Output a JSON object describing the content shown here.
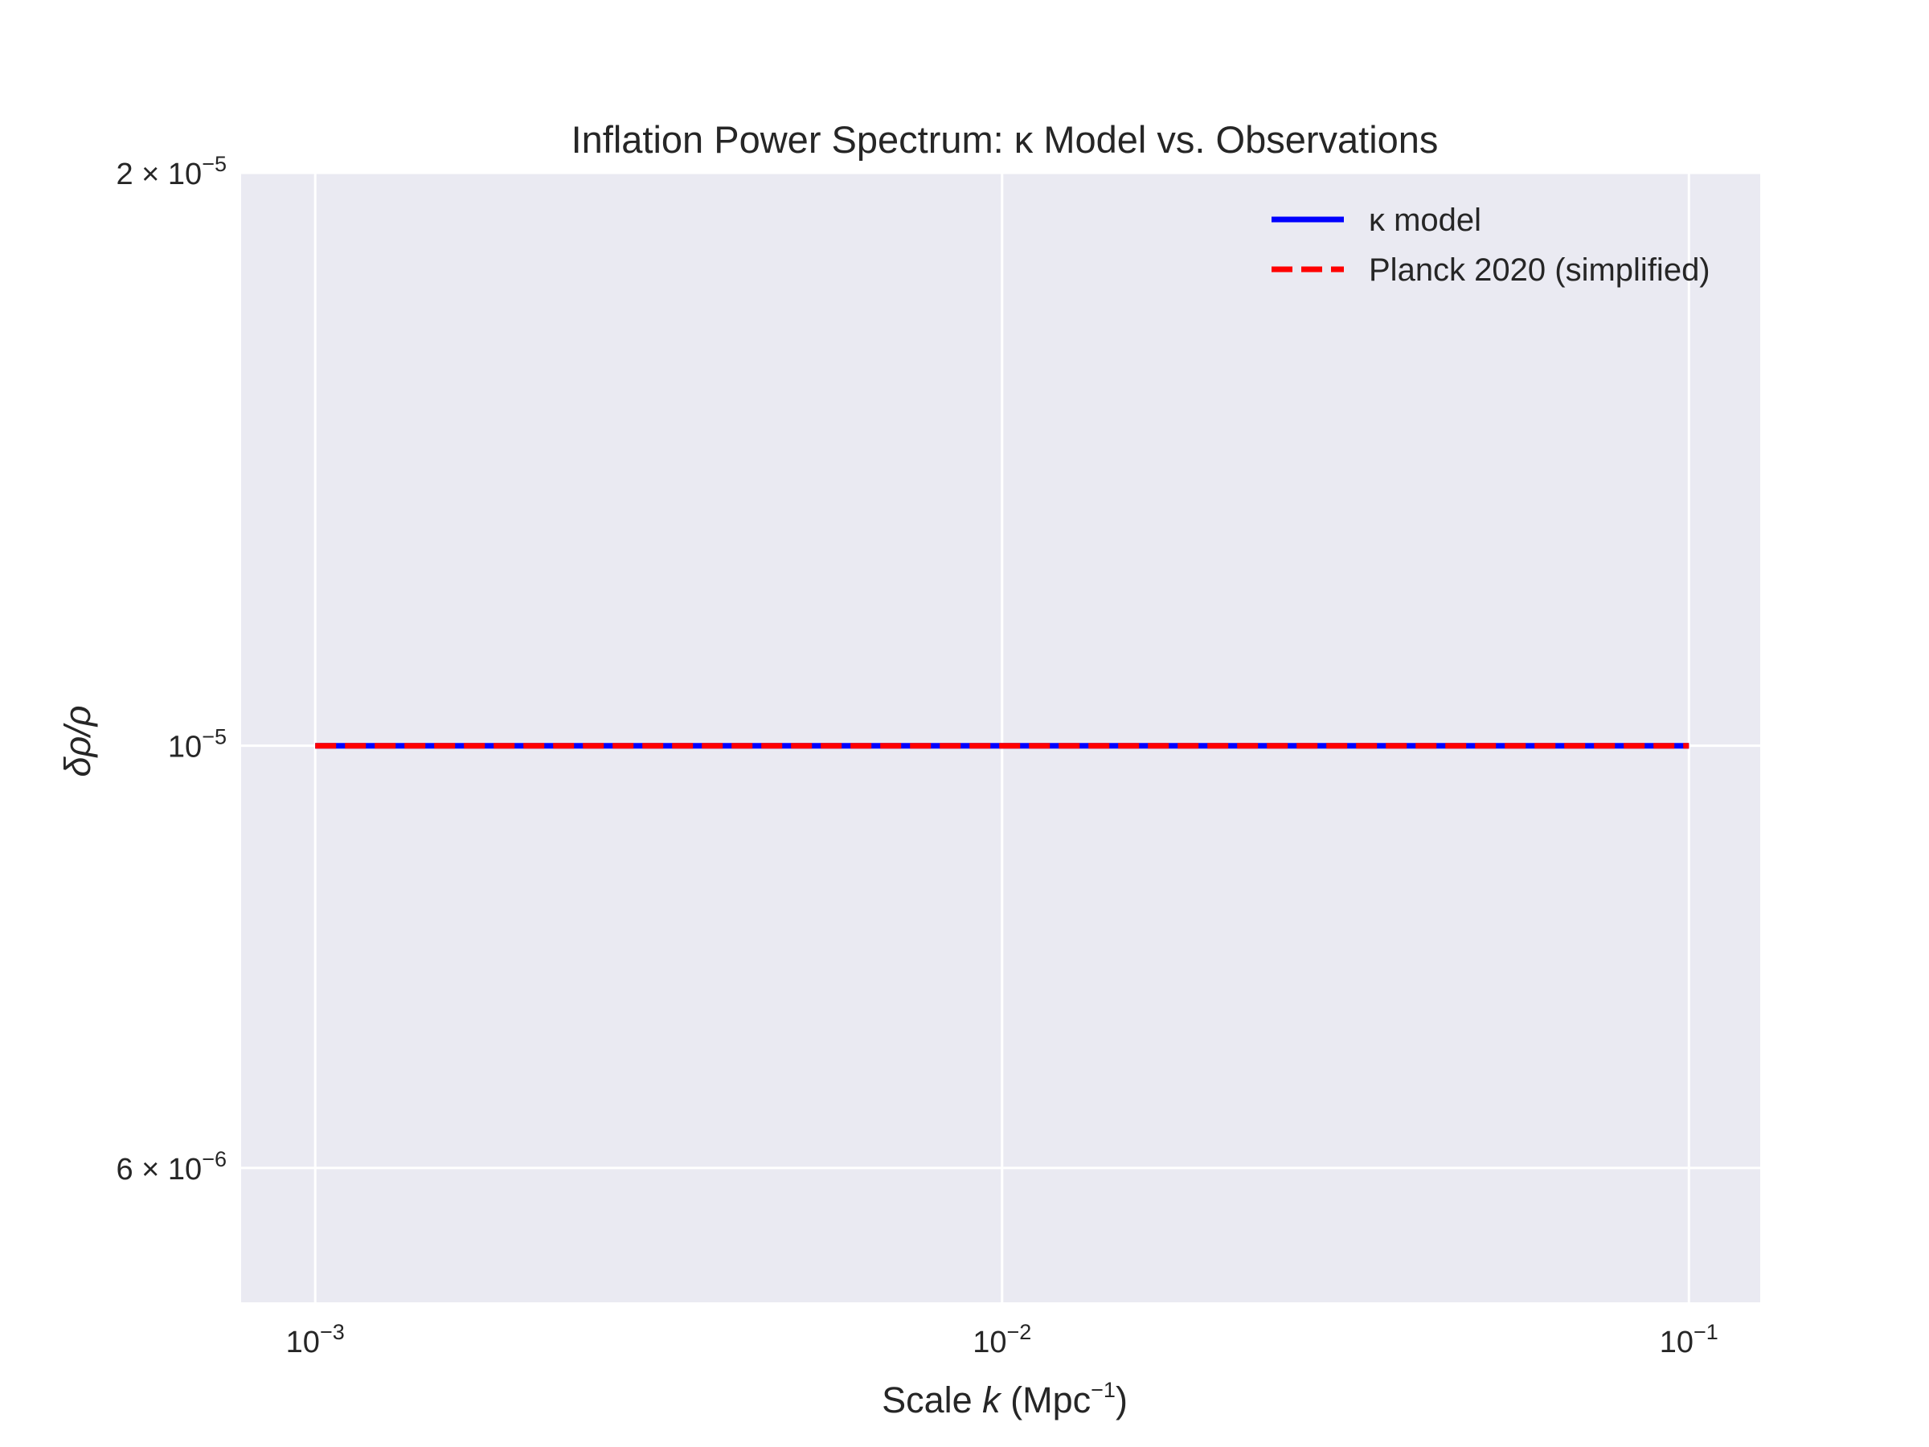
{
  "chart_data": {
    "type": "line",
    "title": "Inflation Power Spectrum: κ Model vs. Observations",
    "xlabel": {
      "pre": "Scale ",
      "var": "k",
      "post": " (Mpc",
      "sup": "−1",
      "close": ")"
    },
    "ylabel": "δρ/ρ",
    "xscale": "log",
    "yscale": "log",
    "xlim": [
      0.00078,
      0.127
    ],
    "ylim": [
      5.1e-06,
      2e-05
    ],
    "grid": true,
    "legend_position": "top-right",
    "x_ticks": [
      {
        "value": 0.001,
        "base": "10",
        "exp": "−3"
      },
      {
        "value": 0.01,
        "base": "10",
        "exp": "−2"
      },
      {
        "value": 0.1,
        "base": "10",
        "exp": "−1"
      }
    ],
    "y_ticks": [
      {
        "value": 6e-06,
        "base": "6 × 10",
        "exp": "−6"
      },
      {
        "value": 1e-05,
        "base": "10",
        "exp": "−5"
      },
      {
        "value": 2e-05,
        "base": "2 × 10",
        "exp": "−5"
      }
    ],
    "series": [
      {
        "name": "κ model",
        "color": "#0000ff",
        "style": "solid",
        "x": [
          0.001,
          0.1
        ],
        "y": [
          1e-05,
          1e-05
        ]
      },
      {
        "name": "Planck 2020 (simplified)",
        "color": "#ff0000",
        "style": "dashed",
        "x": [
          0.001,
          0.1
        ],
        "y": [
          1e-05,
          1e-05
        ]
      }
    ],
    "colors": {
      "plot_background": "#eaeaf2",
      "grid": "#ffffff",
      "text": "#262626"
    }
  }
}
